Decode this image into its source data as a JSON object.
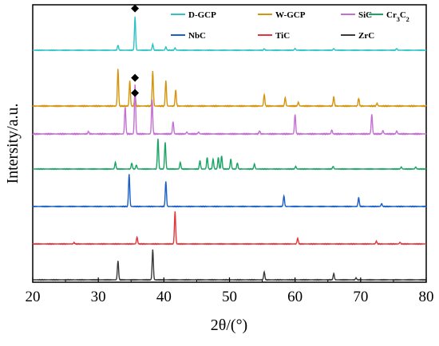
{
  "chart_data": {
    "type": "line",
    "title": "",
    "xlabel": "2θ/(°)",
    "ylabel": "Intersity/a.u.",
    "xlim": [
      20,
      80
    ],
    "x_ticks": [
      20,
      30,
      40,
      50,
      60,
      70,
      80
    ],
    "y_ticks_labeled": false,
    "grid": false,
    "legend_position": "top-right",
    "annotations": [
      {
        "symbol": "◆",
        "x": 35.6,
        "series": "D-GCP"
      },
      {
        "symbol": "◆",
        "x": 35.6,
        "series": "W-GCP"
      },
      {
        "symbol": "◆",
        "x": 35.6,
        "series": "SiC"
      }
    ],
    "series": [
      {
        "name": "D-GCP",
        "color": "#2ec4c4",
        "peaks": [
          [
            33.0,
            0.15
          ],
          [
            35.6,
            1.0
          ],
          [
            38.3,
            0.18
          ],
          [
            40.3,
            0.1
          ],
          [
            41.7,
            0.07
          ],
          [
            55.3,
            0.04
          ],
          [
            60.0,
            0.05
          ],
          [
            65.9,
            0.05
          ],
          [
            75.5,
            0.05
          ]
        ]
      },
      {
        "name": "W-GCP",
        "color": "#d4950c",
        "peaks": [
          [
            33.0,
            0.8
          ],
          [
            34.8,
            0.55
          ],
          [
            35.6,
            0.25
          ],
          [
            38.3,
            0.75
          ],
          [
            40.3,
            0.55
          ],
          [
            41.8,
            0.35
          ],
          [
            55.3,
            0.25
          ],
          [
            58.5,
            0.18
          ],
          [
            60.5,
            0.08
          ],
          [
            65.9,
            0.2
          ],
          [
            69.7,
            0.17
          ],
          [
            72.5,
            0.06
          ]
        ]
      },
      {
        "name": "SiC",
        "color": "#c56fd6",
        "peaks": [
          [
            28.5,
            0.05
          ],
          [
            34.1,
            0.55
          ],
          [
            35.6,
            1.0
          ],
          [
            38.2,
            0.7
          ],
          [
            41.4,
            0.25
          ],
          [
            43.5,
            0.04
          ],
          [
            45.3,
            0.04
          ],
          [
            54.6,
            0.06
          ],
          [
            60.0,
            0.4
          ],
          [
            65.6,
            0.08
          ],
          [
            71.7,
            0.4
          ],
          [
            73.4,
            0.07
          ],
          [
            75.5,
            0.06
          ]
        ]
      },
      {
        "name": "Cr3C2",
        "color": "#19a463",
        "peaks": [
          [
            32.6,
            0.2
          ],
          [
            35.1,
            0.18
          ],
          [
            35.8,
            0.12
          ],
          [
            39.1,
            0.9
          ],
          [
            40.2,
            0.8
          ],
          [
            42.5,
            0.2
          ],
          [
            45.5,
            0.25
          ],
          [
            46.6,
            0.35
          ],
          [
            47.5,
            0.3
          ],
          [
            48.3,
            0.35
          ],
          [
            48.8,
            0.4
          ],
          [
            50.2,
            0.3
          ],
          [
            51.2,
            0.18
          ],
          [
            53.8,
            0.15
          ],
          [
            60.1,
            0.08
          ],
          [
            65.8,
            0.08
          ],
          [
            76.2,
            0.06
          ],
          [
            78.4,
            0.06
          ]
        ]
      },
      {
        "name": "NbC",
        "color": "#1a5fc8",
        "peaks": [
          [
            34.7,
            0.9
          ],
          [
            40.3,
            0.7
          ],
          [
            58.3,
            0.3
          ],
          [
            69.7,
            0.25
          ],
          [
            73.2,
            0.08
          ]
        ]
      },
      {
        "name": "TiC",
        "color": "#e8333a",
        "peaks": [
          [
            26.3,
            0.04
          ],
          [
            35.9,
            0.2
          ],
          [
            41.7,
            0.95
          ],
          [
            60.4,
            0.17
          ],
          [
            72.4,
            0.08
          ],
          [
            76.0,
            0.05
          ]
        ]
      },
      {
        "name": "ZrC",
        "color": "#3a3a3a",
        "peaks": [
          [
            33.0,
            0.6
          ],
          [
            38.3,
            0.95
          ],
          [
            55.3,
            0.25
          ],
          [
            65.9,
            0.2
          ],
          [
            69.3,
            0.06
          ]
        ]
      }
    ]
  },
  "legend": {
    "items": [
      {
        "label": "D-GCP",
        "color": "#2ec4c4"
      },
      {
        "label": "W-GCP",
        "color": "#d4950c"
      },
      {
        "label": "SiC",
        "color": "#c56fd6"
      },
      {
        "label": "Cr3C2",
        "color": "#19a463"
      },
      {
        "label": "NbC",
        "color": "#1a5fc8"
      },
      {
        "label": "TiC",
        "color": "#e8333a"
      },
      {
        "label": "ZrC",
        "color": "#3a3a3a"
      }
    ]
  }
}
